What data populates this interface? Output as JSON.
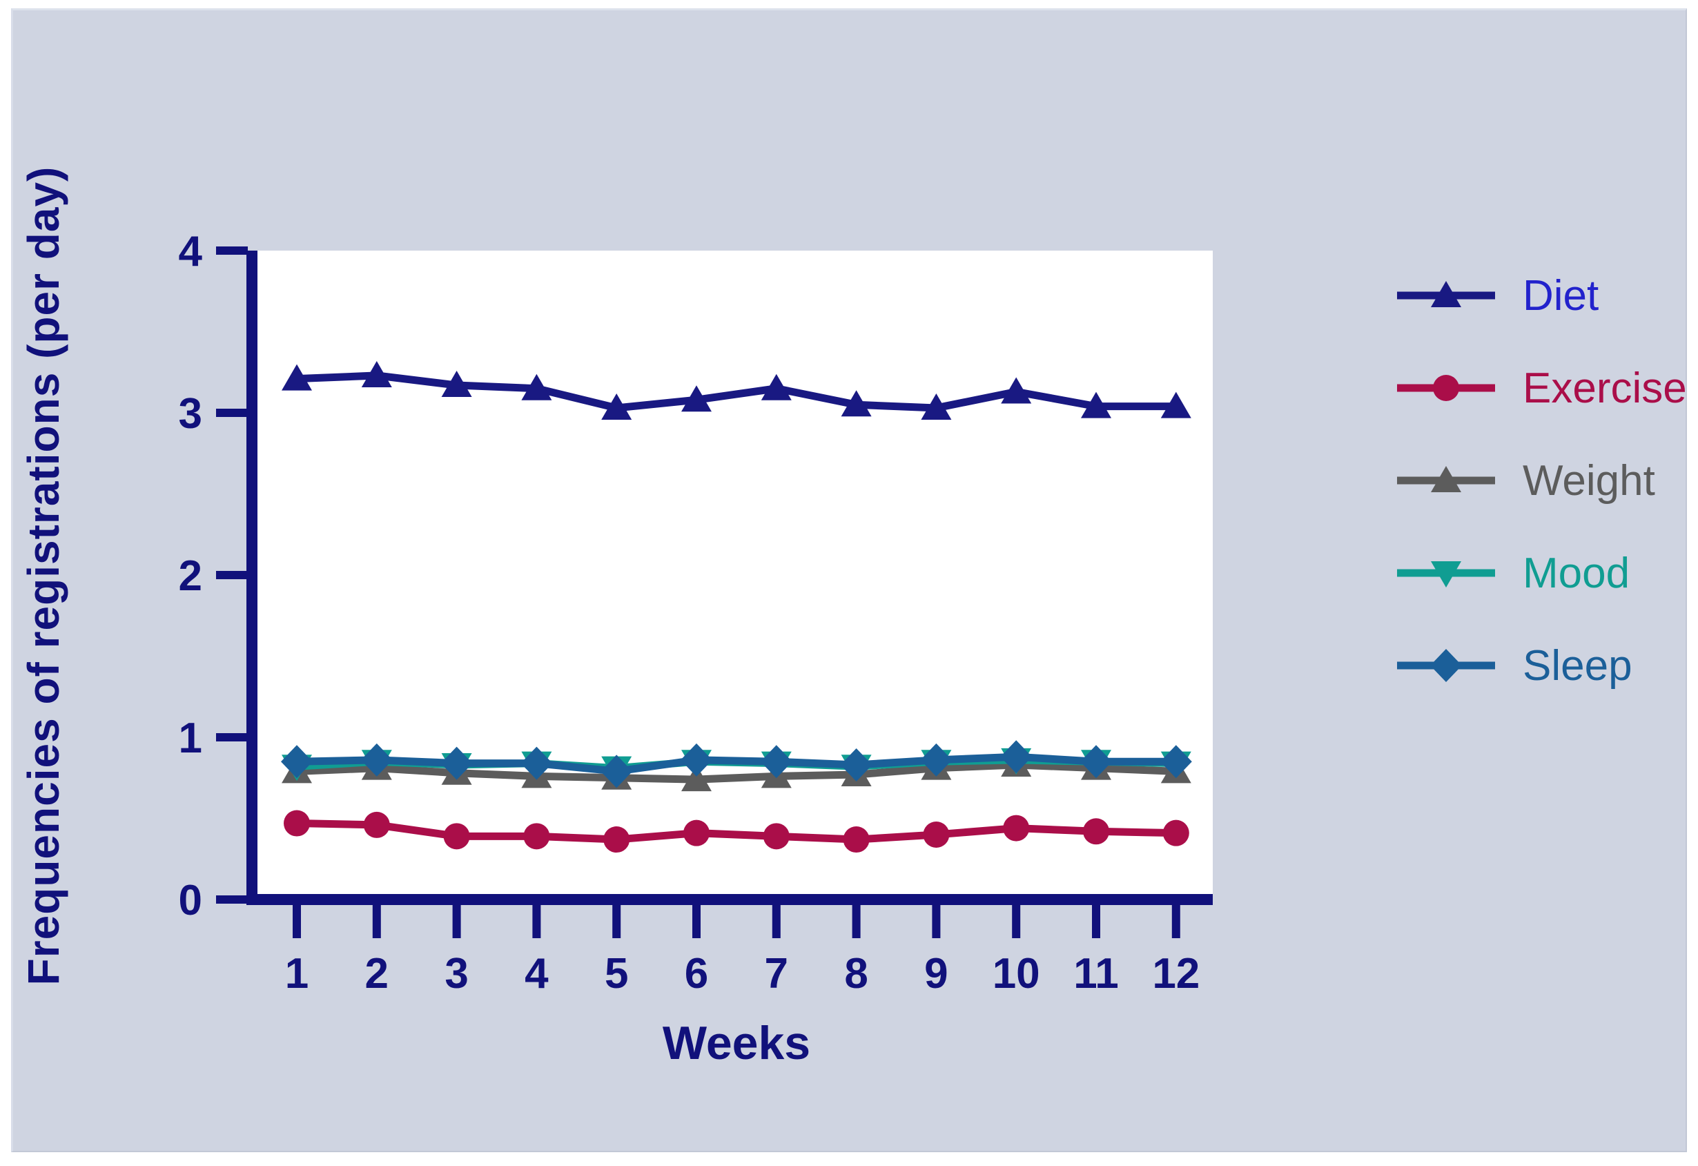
{
  "page": {
    "background_color": "#ffffff",
    "panel_color": "#cfd4e1"
  },
  "chart_data": {
    "type": "line",
    "title": "",
    "xlabel": "Weeks",
    "ylabel": "Frequencies of registrations (per day)",
    "categories": [
      1,
      2,
      3,
      4,
      5,
      6,
      7,
      8,
      9,
      10,
      11,
      12
    ],
    "ylim": [
      0,
      4
    ],
    "yticks": [
      0,
      1,
      2,
      3,
      4
    ],
    "grid": false,
    "legend_position": "right",
    "plot_background": "#ffffff",
    "axis_color": "#11117b",
    "series": [
      {
        "name": "Diet",
        "color": "#191982",
        "label_color": "#2222cc",
        "marker": "triangle-up",
        "values": [
          3.21,
          3.23,
          3.17,
          3.15,
          3.03,
          3.08,
          3.15,
          3.05,
          3.03,
          3.13,
          3.04,
          3.04
        ]
      },
      {
        "name": "Exercise",
        "color": "#aa0e49",
        "label_color": "#aa0e49",
        "marker": "circle",
        "values": [
          0.47,
          0.46,
          0.39,
          0.39,
          0.37,
          0.41,
          0.39,
          0.37,
          0.4,
          0.44,
          0.42,
          0.41
        ]
      },
      {
        "name": "Weight",
        "color": "#5c5c5c",
        "label_color": "#5c5c5c",
        "marker": "triangle-up",
        "values": [
          0.79,
          0.81,
          0.78,
          0.76,
          0.75,
          0.74,
          0.76,
          0.77,
          0.81,
          0.83,
          0.81,
          0.79
        ]
      },
      {
        "name": "Mood",
        "color": "#109d92",
        "label_color": "#109d92",
        "marker": "triangle-down",
        "values": [
          0.82,
          0.85,
          0.83,
          0.84,
          0.81,
          0.85,
          0.84,
          0.82,
          0.85,
          0.86,
          0.85,
          0.84
        ]
      },
      {
        "name": "Sleep",
        "color": "#1b5f99",
        "label_color": "#1b5f99",
        "marker": "diamond",
        "values": [
          0.85,
          0.86,
          0.84,
          0.84,
          0.79,
          0.86,
          0.85,
          0.83,
          0.86,
          0.88,
          0.85,
          0.85
        ]
      }
    ]
  }
}
